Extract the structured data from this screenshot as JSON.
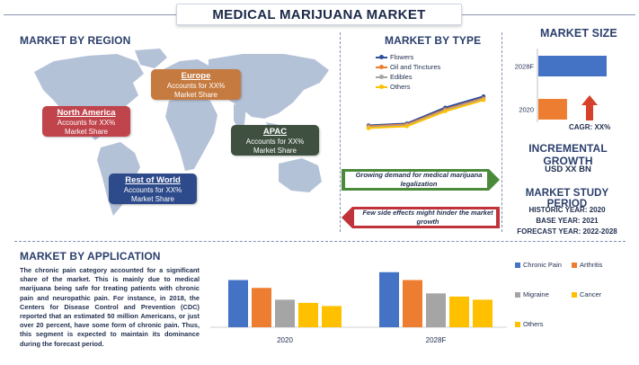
{
  "title": "MEDICAL MARIJUANA MARKET",
  "region": {
    "header": "MARKET BY REGION",
    "boxes": [
      {
        "name": "North America",
        "line1": "Accounts for XX%",
        "line2": "Market Share",
        "color": "#c0444c"
      },
      {
        "name": "Europe",
        "line1": "Accounts for XX%",
        "line2": "Market Share",
        "color": "#c57a3f"
      },
      {
        "name": "APAC",
        "line1": "Accounts for XX%",
        "line2": "Market Share",
        "color": "#3f5040"
      },
      {
        "name": "Rest of World",
        "line1": "Accounts for XX%",
        "line2": "Market Share",
        "color": "#2d4a8a"
      }
    ]
  },
  "type": {
    "header": "MARKET BY TYPE",
    "legend": [
      "Flowers",
      "Oil and Tinctures",
      "Edibles",
      "Others"
    ],
    "drivers": [
      {
        "text": "Growing demand for medical marijuana legalization",
        "color": "#4b8a3a"
      },
      {
        "text": "Few side effects might hinder the market growth",
        "color": "#c0333a"
      }
    ]
  },
  "size": {
    "header": "MARKET SIZE",
    "cagr": "CAGR: XX%",
    "incremental_header": "INCREMENTAL GROWTH",
    "incremental_value": "USD XX BN",
    "period_header": "MARKET STUDY PERIOD",
    "historic": "HISTORIC YEAR: 2020",
    "base": "BASE YEAR: 2021",
    "forecast": "FORECAST YEAR: 2022-2028"
  },
  "application": {
    "header": "MARKET BY APPLICATION",
    "text": "The chronic pain category accounted for a significant share of the market. This is mainly due to medical marijuana being safe for treating patients with chronic pain and neuropathic pain. For instance, in 2018, the Centers for Disease Control and Prevention (CDC) reported that an estimated 50 million Americans, or just over 20 percent, have some form of chronic pain. Thus, this segment is expected to maintain its dominance during the forecast period."
  },
  "chart_data": [
    {
      "type": "line",
      "x": [
        1,
        2,
        3,
        4
      ],
      "series": [
        {
          "name": "Flowers",
          "values": [
            14,
            16,
            33,
            45
          ],
          "color": "#2f4f9b"
        },
        {
          "name": "Oil and Tinctures",
          "values": [
            13,
            15,
            31,
            43
          ],
          "color": "#ed7d31"
        },
        {
          "name": "Edibles",
          "values": [
            12,
            14,
            30,
            42
          ],
          "color": "#a5a5a5"
        },
        {
          "name": "Others",
          "values": [
            11,
            13,
            29,
            41
          ],
          "color": "#ffc000"
        }
      ],
      "ylim": [
        0,
        50
      ]
    },
    {
      "type": "bar",
      "orientation": "horizontal",
      "categories": [
        "2028F",
        "2020"
      ],
      "values": [
        100,
        42
      ],
      "colors": [
        "#4472c4",
        "#ed7d31"
      ],
      "xlim": [
        0,
        100
      ]
    },
    {
      "type": "bar",
      "categories": [
        "2020",
        "2028F"
      ],
      "series": [
        {
          "name": "Chronic Pain",
          "values": [
            60,
            70
          ],
          "color": "#4472c4"
        },
        {
          "name": "Arthritis",
          "values": [
            50,
            60
          ],
          "color": "#ed7d31"
        },
        {
          "name": "Migraine",
          "values": [
            35,
            43
          ],
          "color": "#a5a5a5"
        },
        {
          "name": "Cancer",
          "values": [
            31,
            39
          ],
          "color": "#ffc000"
        },
        {
          "name": "Others",
          "values": [
            27,
            35
          ],
          "color": "#ffc000"
        }
      ],
      "ylim": [
        0,
        80
      ]
    }
  ]
}
